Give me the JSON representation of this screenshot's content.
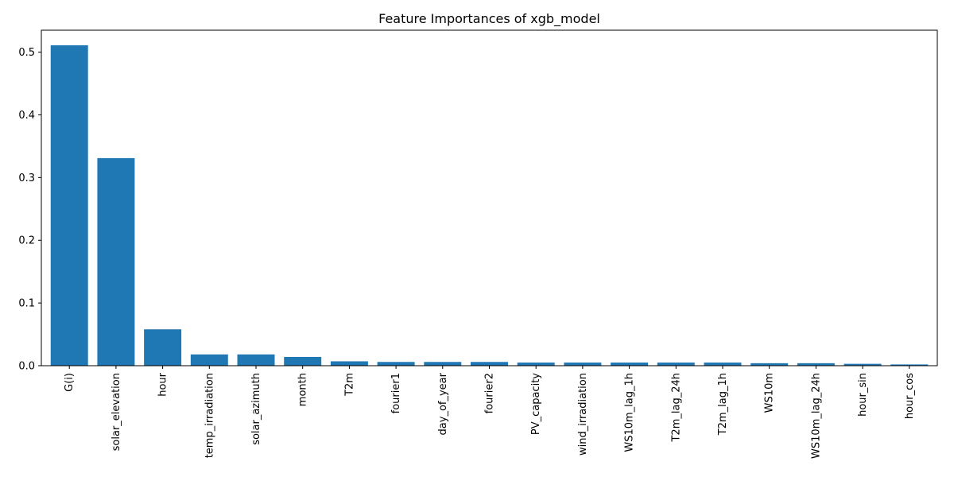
{
  "chart_data": {
    "type": "bar",
    "title": "Feature Importances of xgb_model",
    "xlabel": "",
    "ylabel": "",
    "ylim": [
      0,
      0.535
    ],
    "yticks": [
      "0.0",
      "0.1",
      "0.2",
      "0.3",
      "0.4",
      "0.5"
    ],
    "categories": [
      "G(i)",
      "solar_elevation",
      "hour",
      "temp_irradiation",
      "solar_azimuth",
      "month",
      "T2m",
      "fourier1",
      "day_of_year",
      "fourier2",
      "PV_capacity",
      "wind_irradiation",
      "WS10m_lag_1h",
      "T2m_lag_24h",
      "T2m_lag_1h",
      "WS10m",
      "WS10m_lag_24h",
      "hour_sin",
      "hour_cos"
    ],
    "values": [
      0.511,
      0.331,
      0.058,
      0.018,
      0.018,
      0.014,
      0.007,
      0.006,
      0.006,
      0.006,
      0.005,
      0.005,
      0.005,
      0.005,
      0.005,
      0.004,
      0.004,
      0.003,
      0.002
    ],
    "bar_color": "#1f77b4",
    "grid": false
  }
}
